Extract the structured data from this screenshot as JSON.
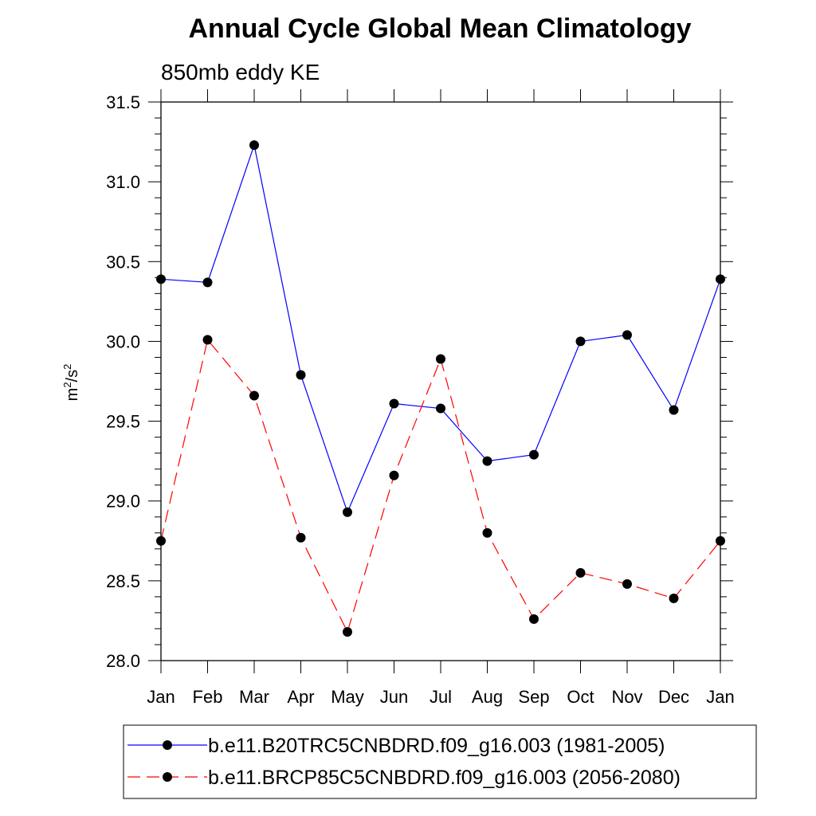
{
  "chart_data": {
    "type": "line",
    "title": "Annual Cycle Global Mean Climatology",
    "subtitle": "850mb eddy KE",
    "ylabel_base": "m",
    "ylabel_sup1": "2",
    "ylabel_mid": "/s",
    "ylabel_sup2": "2",
    "categories": [
      "Jan",
      "Feb",
      "Mar",
      "Apr",
      "May",
      "Jun",
      "Jul",
      "Aug",
      "Sep",
      "Oct",
      "Nov",
      "Dec",
      "Jan"
    ],
    "ylim": [
      28.0,
      31.5
    ],
    "yticks": [
      "28.0",
      "28.5",
      "29.0",
      "29.5",
      "30.0",
      "30.5",
      "31.0",
      "31.5"
    ],
    "series": [
      {
        "name": "b.e11.B20TRC5CNBDRD.f09_g16.003 (1981-2005)",
        "color": "#0000ff",
        "dash": "solid",
        "values": [
          30.39,
          30.37,
          31.23,
          29.79,
          28.93,
          29.61,
          29.58,
          29.25,
          29.29,
          30.0,
          30.04,
          29.57,
          30.39
        ]
      },
      {
        "name": "b.e11.BRCP85C5CNBDRD.f09_g16.003 (2056-2080)",
        "color": "#ff0000",
        "dash": "dashed",
        "values": [
          28.75,
          30.01,
          29.66,
          28.77,
          28.18,
          29.16,
          29.89,
          28.8,
          28.26,
          28.55,
          28.48,
          28.39,
          28.75
        ]
      }
    ]
  }
}
